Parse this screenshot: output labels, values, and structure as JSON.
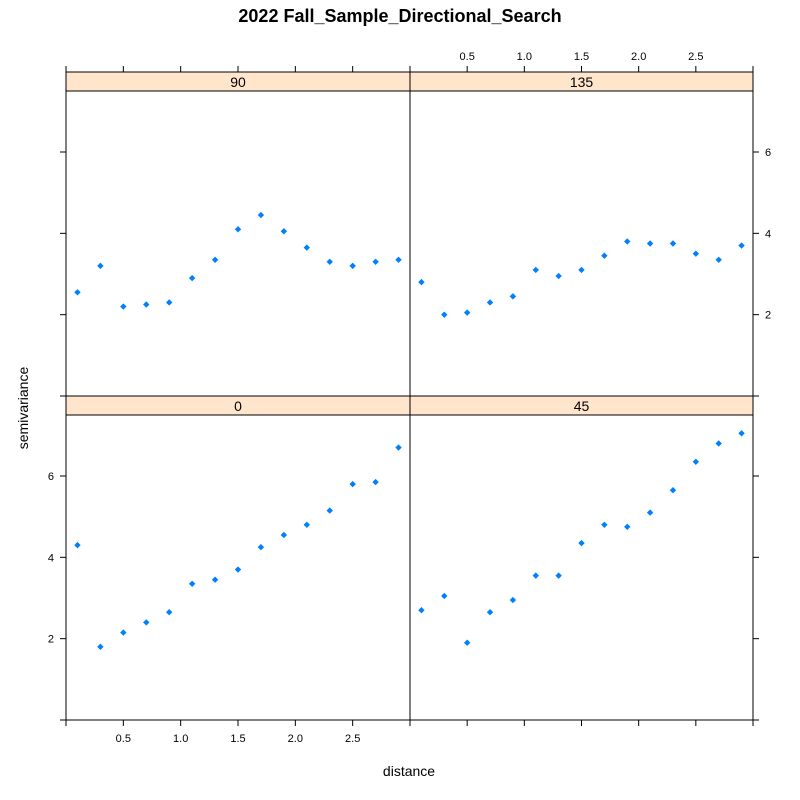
{
  "chart_data": {
    "type": "scatter",
    "title": "2022 Fall_Sample_Directional_Search",
    "xlabel": "distance",
    "ylabel": "semivariance",
    "xlim": [
      0,
      3.0
    ],
    "ylim": [
      0,
      7.5
    ],
    "x_ticks": [
      0.5,
      1.0,
      1.5,
      2.0,
      2.5
    ],
    "x_tick_labels": [
      "0.5",
      "1.0",
      "1.5",
      "2.0",
      "2.5"
    ],
    "y_ticks": [
      2,
      4,
      6
    ],
    "y_tick_labels": [
      "2",
      "4",
      "6"
    ],
    "point_color": "#0080ff",
    "strip_color": "#ffe5cc",
    "x": [
      0.1,
      0.3,
      0.5,
      0.7,
      0.9,
      1.1,
      1.3,
      1.5,
      1.7,
      1.9,
      2.1,
      2.3,
      2.5,
      2.7,
      2.9
    ],
    "panels": [
      {
        "label": "0",
        "values": [
          4.3,
          1.8,
          2.15,
          2.4,
          2.65,
          3.35,
          3.45,
          3.7,
          4.25,
          4.55,
          4.8,
          5.15,
          5.8,
          5.85,
          6.7
        ]
      },
      {
        "label": "45",
        "values": [
          2.7,
          3.05,
          1.9,
          2.65,
          2.95,
          3.55,
          3.55,
          4.35,
          4.8,
          4.75,
          5.1,
          5.65,
          6.35,
          6.8,
          7.05
        ]
      },
      {
        "label": "90",
        "values": [
          2.55,
          3.2,
          2.2,
          2.25,
          2.3,
          2.9,
          3.35,
          4.1,
          4.45,
          4.05,
          3.65,
          3.3,
          3.2,
          3.3,
          3.35
        ]
      },
      {
        "label": "135",
        "values": [
          2.8,
          2.0,
          2.05,
          2.3,
          2.45,
          3.1,
          2.95,
          3.1,
          3.45,
          3.8,
          3.75,
          3.75,
          3.5,
          3.35,
          3.7
        ]
      }
    ]
  }
}
